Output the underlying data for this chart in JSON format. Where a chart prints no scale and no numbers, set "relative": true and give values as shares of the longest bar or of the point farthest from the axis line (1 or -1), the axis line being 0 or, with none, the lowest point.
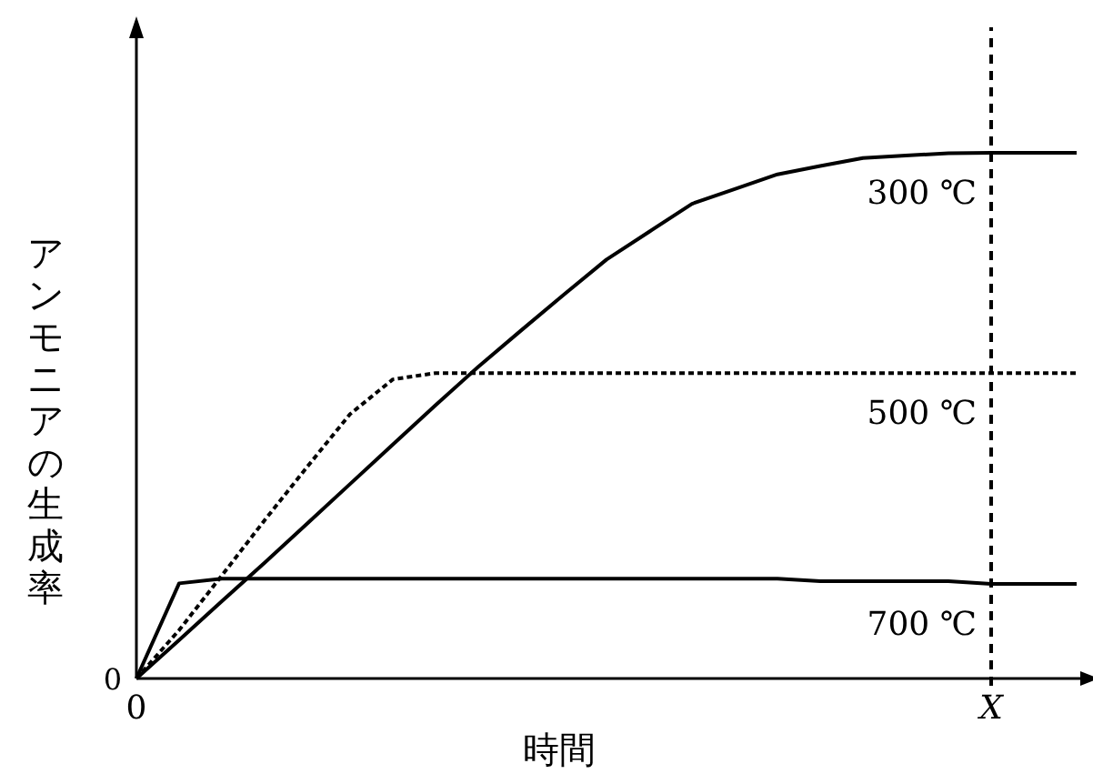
{
  "chart_data": {
    "type": "line",
    "relative": true,
    "xlabel": "時間",
    "ylabel": "アンモニアの生成率",
    "categories": [
      "0",
      null,
      null,
      null,
      null,
      null,
      null,
      null,
      null,
      null,
      null,
      null,
      null,
      null,
      null,
      null,
      null,
      null,
      null,
      null,
      "X",
      null,
      null
    ],
    "annotations": [
      "0"
    ],
    "ref_lines": [
      {
        "axis": "x",
        "value": "X",
        "line_style": "dashed",
        "color": "#000000"
      }
    ],
    "series": [
      {
        "name": "300 ℃",
        "color": "#000000",
        "line_style": "solid",
        "values": [
          0,
          0.073,
          0.147,
          0.22,
          0.295,
          0.37,
          0.445,
          0.52,
          0.593,
          0.662,
          0.73,
          0.797,
          0.85,
          0.903,
          0.931,
          0.959,
          0.975,
          0.99,
          0.995,
          0.999,
          1,
          1,
          1
        ]
      },
      {
        "name": "500 ℃",
        "color": "#000000",
        "line_style": "dashed",
        "values": [
          0,
          0.092,
          0.196,
          0.301,
          0.403,
          0.503,
          0.569,
          0.581,
          0.581,
          0.581,
          0.581,
          0.581,
          0.581,
          0.581,
          0.581,
          0.581,
          0.581,
          0.581,
          0.581,
          0.581,
          0.581,
          0.581,
          0.581
        ]
      },
      {
        "name": "700 ℃",
        "color": "#000000",
        "line_style": "solid",
        "values": [
          0,
          0.181,
          0.19,
          0.19,
          0.19,
          0.19,
          0.19,
          0.19,
          0.19,
          0.19,
          0.19,
          0.19,
          0.19,
          0.19,
          0.19,
          0.19,
          0.185,
          0.185,
          0.185,
          0.185,
          0.18,
          0.18,
          0.18
        ]
      }
    ]
  }
}
